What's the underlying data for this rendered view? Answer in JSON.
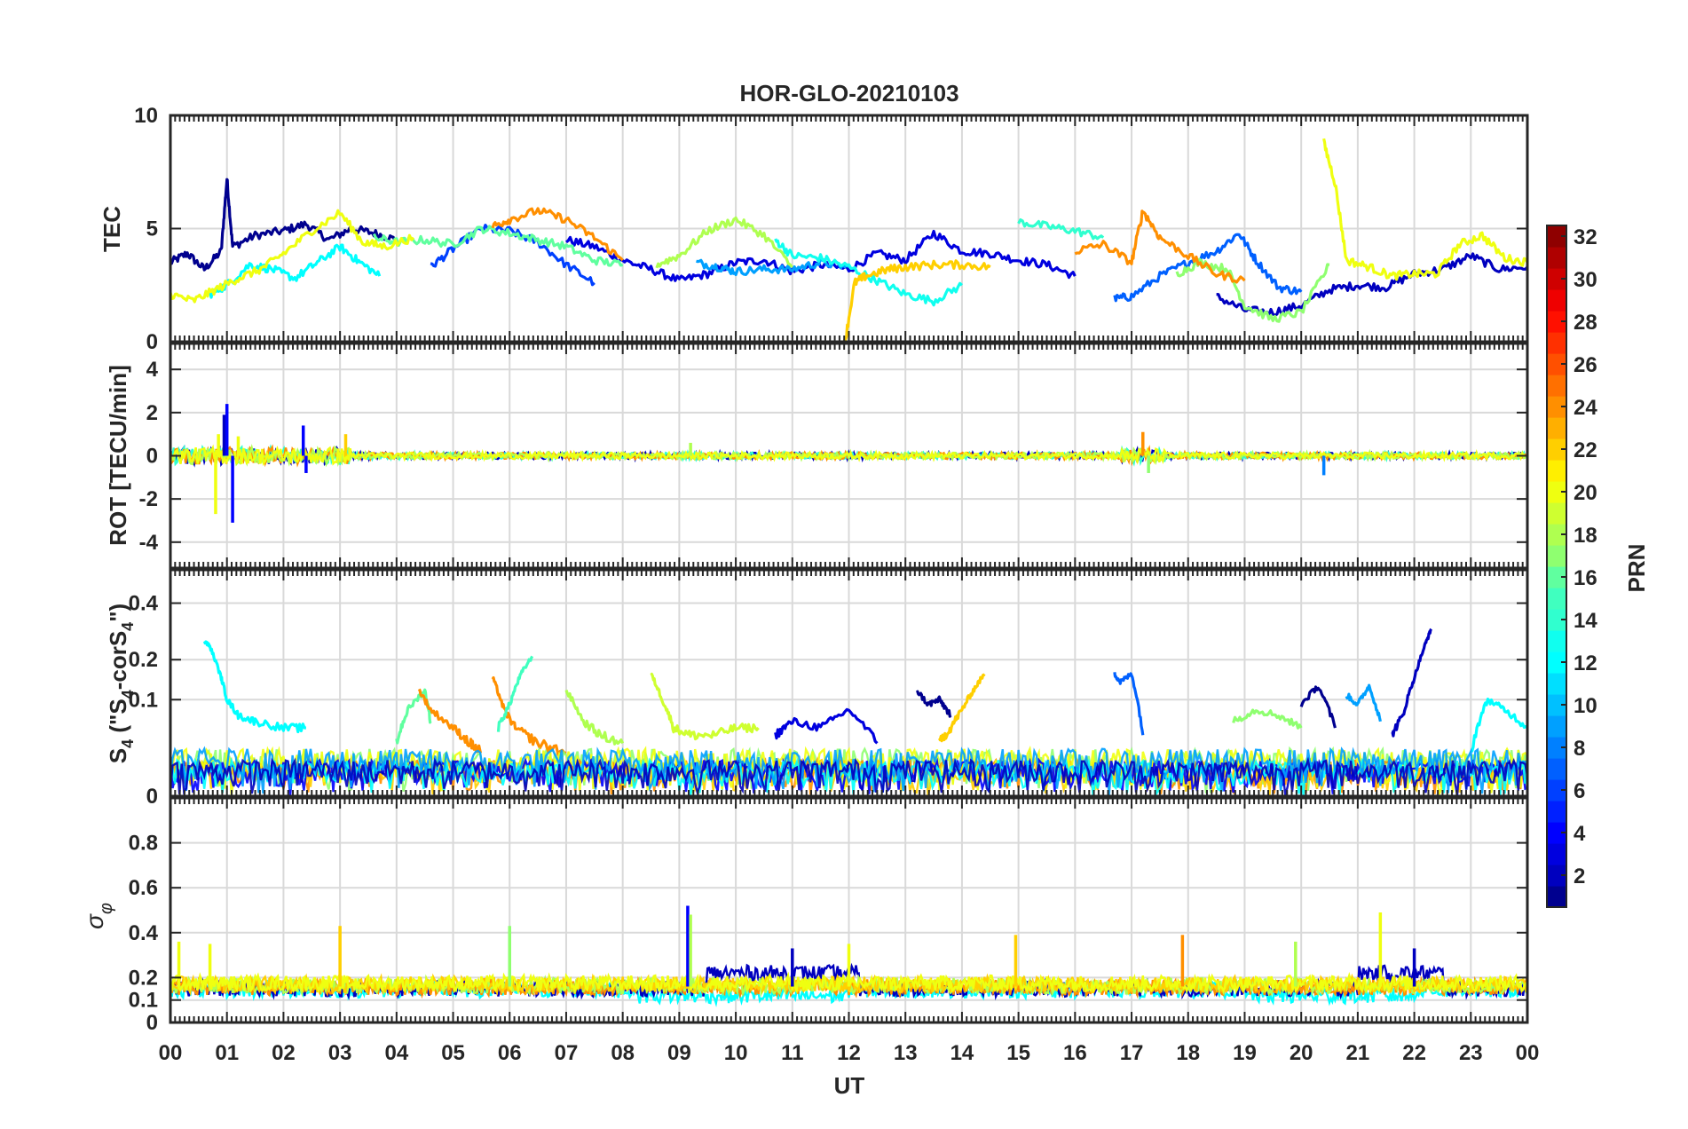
{
  "chart_data": {
    "type": "line",
    "title": "HOR-GLO-20210103",
    "xlabel": "UT",
    "x_ticks": [
      "00",
      "01",
      "02",
      "03",
      "04",
      "05",
      "06",
      "07",
      "08",
      "09",
      "10",
      "11",
      "12",
      "13",
      "14",
      "15",
      "16",
      "17",
      "18",
      "19",
      "20",
      "21",
      "22",
      "23",
      "00"
    ],
    "xlim": [
      0,
      24
    ],
    "grid": true,
    "colormap": "jet",
    "colorbar": {
      "label": "PRN",
      "range": [
        1,
        32
      ],
      "ticks": [
        "2",
        "4",
        "6",
        "8",
        "10",
        "12",
        "14",
        "16",
        "18",
        "20",
        "22",
        "24",
        "26",
        "28",
        "30",
        "32"
      ],
      "placement": "right"
    },
    "panels": [
      {
        "id": "tec",
        "ylabel": "TEC",
        "ylim": [
          0,
          10
        ],
        "y_ticks": [
          "0",
          "5",
          "10"
        ],
        "y_tick_values": [
          0,
          5,
          10
        ],
        "series": [
          {
            "prn": 2,
            "color": "#00008f",
            "x": [
              0,
              0.3,
              0.6,
              0.9,
              1.0,
              1.1,
              1.5,
              2.0,
              2.4,
              2.8,
              3.2,
              3.6,
              4.0
            ],
            "y": [
              3.5,
              3.9,
              3.2,
              4.0,
              7.2,
              4.2,
              4.7,
              4.9,
              5.2,
              4.5,
              5.0,
              4.8,
              4.5
            ]
          },
          {
            "prn": 4,
            "color": "#0000df",
            "x": [
              7.0,
              7.5,
              8.0,
              8.5,
              9.0,
              9.5,
              10.0,
              10.5,
              11.0,
              11.5,
              12.0,
              12.5,
              13.0,
              13.5,
              14.0,
              14.5,
              15.0,
              15.5,
              16.0
            ],
            "y": [
              4.5,
              4.2,
              3.6,
              3.2,
              2.7,
              3.0,
              3.5,
              3.6,
              3.1,
              3.4,
              3.2,
              3.9,
              3.6,
              4.8,
              4.0,
              3.9,
              3.6,
              3.4,
              2.9
            ]
          },
          {
            "prn": 3,
            "color": "#0000bf",
            "x": [
              18.5,
              19.0,
              19.5,
              20.0,
              20.5,
              21.0,
              21.5,
              22.0,
              22.5,
              23.0,
              23.5,
              24.0
            ],
            "y": [
              2.0,
              1.4,
              1.3,
              1.6,
              2.3,
              2.5,
              2.4,
              3.0,
              3.2,
              3.8,
              3.2,
              3.3
            ]
          },
          {
            "prn": 6,
            "color": "#0040ff",
            "x": [
              4.6,
              5.0,
              5.5,
              6.0,
              6.5,
              7.0,
              7.5
            ],
            "y": [
              3.3,
              4.1,
              5.0,
              4.9,
              4.4,
              3.4,
              2.6
            ]
          },
          {
            "prn": 7,
            "color": "#0060ff",
            "x": [
              16.7,
              17.0,
              17.5,
              18.0,
              18.5,
              18.9,
              19.2,
              19.6,
              20.0
            ],
            "y": [
              1.9,
              2.0,
              2.9,
              3.5,
              4.0,
              4.8,
              3.6,
              2.4,
              2.2
            ]
          },
          {
            "prn": 9,
            "color": "#00a0ff",
            "x": [
              9.3,
              9.7,
              10.0,
              10.5,
              11.0,
              11.5,
              12.0
            ],
            "y": [
              3.5,
              3.3,
              3.1,
              3.2,
              3.2,
              3.5,
              3.3
            ]
          },
          {
            "prn": 12,
            "color": "#00ffff",
            "x": [
              0.7,
              1.0,
              1.4,
              1.8,
              2.2,
              2.6,
              3.0,
              3.3,
              3.7
            ],
            "y": [
              2.1,
              2.5,
              3.4,
              3.2,
              2.8,
              3.5,
              4.2,
              3.6,
              2.9
            ]
          },
          {
            "prn": 13,
            "color": "#10ffef",
            "x": [
              10.7,
              11.0,
              11.5,
              12.0,
              12.5,
              13.0,
              13.5,
              14.0
            ],
            "y": [
              4.5,
              3.8,
              3.7,
              3.3,
              2.7,
              2.1,
              1.8,
              2.5
            ]
          },
          {
            "prn": 14,
            "color": "#30ffcf",
            "x": [
              15.0,
              15.5,
              16.0,
              16.5
            ],
            "y": [
              5.3,
              5.1,
              4.9,
              4.6
            ]
          },
          {
            "prn": 16,
            "color": "#60ff9f",
            "x": [
              3.6,
              4.0,
              4.5,
              5.0,
              5.5,
              6.0,
              6.5,
              7.0,
              7.5,
              8.0
            ],
            "y": [
              4.6,
              4.4,
              4.5,
              4.3,
              5.0,
              4.8,
              4.5,
              4.2,
              3.6,
              3.4
            ]
          },
          {
            "prn": 17,
            "color": "#8fff70",
            "x": [
              17.8,
              18.2,
              18.7,
              19.0,
              19.5,
              20.0,
              20.5
            ],
            "y": [
              3.0,
              3.5,
              3.2,
              1.6,
              1.0,
              1.3,
              3.4
            ]
          },
          {
            "prn": 18,
            "color": "#afff50",
            "x": [
              8.6,
              9.0,
              9.5,
              10.0,
              10.5,
              11.0
            ],
            "y": [
              3.4,
              3.8,
              4.9,
              5.4,
              4.7,
              3.3
            ]
          },
          {
            "prn": 20,
            "color": "#efff10",
            "x": [
              0,
              0.4,
              0.8,
              1.2,
              1.6,
              2.0,
              2.5,
              3.0,
              3.4,
              3.8,
              4.3
            ],
            "y": [
              2.1,
              1.8,
              2.3,
              2.8,
              3.2,
              3.9,
              4.9,
              5.7,
              4.4,
              4.2,
              4.6
            ]
          },
          {
            "prn": 20,
            "color": "#efff10",
            "x": [
              20.4,
              20.6,
              20.8,
              21.2,
              21.6,
              22.0,
              22.4,
              22.8,
              23.2,
              23.6,
              24.0
            ],
            "y": [
              8.8,
              7.0,
              3.6,
              3.3,
              2.9,
              3.0,
              3.0,
              4.3,
              4.7,
              3.7,
              3.5
            ]
          },
          {
            "prn": 22,
            "color": "#ffcf00",
            "x": [
              11.9,
              12.1,
              12.3,
              12.7,
              13.0,
              13.5,
              14.0,
              14.5
            ],
            "y": [
              -0.5,
              2.6,
              2.9,
              3.2,
              3.3,
              3.4,
              3.4,
              3.3
            ]
          },
          {
            "prn": 24,
            "color": "#ff8f00",
            "x": [
              5.7,
              6.0,
              6.5,
              7.0,
              7.5,
              8.0
            ],
            "y": [
              5.1,
              5.4,
              5.8,
              5.4,
              4.6,
              3.6
            ]
          },
          {
            "prn": 24,
            "color": "#ff8f00",
            "x": [
              16.0,
              16.5,
              17.0,
              17.2,
              17.5,
              18.0,
              18.5,
              19.0
            ],
            "y": [
              4.0,
              4.3,
              3.5,
              5.8,
              4.6,
              3.8,
              3.0,
              2.7
            ]
          }
        ]
      },
      {
        "id": "rot",
        "ylabel": "ROT [TECU/min]",
        "ylim": [
          -5.2,
          5.2
        ],
        "y_ticks": [
          "-4",
          "-2",
          "0",
          "2",
          "4"
        ],
        "y_tick_values": [
          -4,
          -2,
          0,
          2,
          4
        ],
        "baseline": 0,
        "noise_amplitude": 0.15,
        "spikes": [
          {
            "x": 0.8,
            "y": -2.7,
            "prn": 20
          },
          {
            "x": 0.85,
            "y": 1.0,
            "prn": 20
          },
          {
            "x": 0.95,
            "y": 1.9,
            "prn": 2
          },
          {
            "x": 1.0,
            "y": 2.4,
            "prn": 4
          },
          {
            "x": 1.1,
            "y": -3.1,
            "prn": 4
          },
          {
            "x": 1.2,
            "y": 0.9,
            "prn": 20
          },
          {
            "x": 2.35,
            "y": 1.4,
            "prn": 4
          },
          {
            "x": 2.4,
            "y": -0.8,
            "prn": 4
          },
          {
            "x": 3.1,
            "y": 1.0,
            "prn": 22
          },
          {
            "x": 17.2,
            "y": 1.1,
            "prn": 24
          },
          {
            "x": 17.3,
            "y": -0.8,
            "prn": 17
          },
          {
            "x": 20.4,
            "y": -0.9,
            "prn": 8
          },
          {
            "x": 9.2,
            "y": 0.6,
            "prn": 18
          }
        ]
      },
      {
        "id": "s4",
        "ylabel": "S4 (\"S4-corS4\")",
        "ylim": [
          0,
          0.55
        ],
        "y_ticks": [
          "0",
          "0.1",
          "0.2",
          "0.4"
        ],
        "y_tick_values": [
          0,
          0.1,
          0.2,
          0.4
        ],
        "y_scale": "sqrt",
        "series": [
          {
            "prn": 12,
            "color": "#00ffff",
            "x": [
              0.6,
              0.7,
              0.9,
              1.0,
              1.2,
              1.5,
              2.0,
              2.4
            ],
            "y": [
              0.26,
              0.24,
              0.15,
              0.1,
              0.07,
              0.06,
              0.05,
              0.05
            ]
          },
          {
            "prn": 16,
            "color": "#60ff9f",
            "x": [
              4.0,
              4.2,
              4.5,
              4.6
            ],
            "y": [
              0.03,
              0.08,
              0.12,
              0.06
            ]
          },
          {
            "prn": 24,
            "color": "#ff8f00",
            "x": [
              4.4,
              4.6,
              5.0,
              5.3,
              5.5
            ],
            "y": [
              0.12,
              0.08,
              0.05,
              0.03,
              0.02
            ]
          },
          {
            "prn": 24,
            "color": "#ff8f00",
            "x": [
              5.7,
              5.9,
              6.1,
              6.5,
              7.0
            ],
            "y": [
              0.15,
              0.08,
              0.05,
              0.03,
              0.02
            ]
          },
          {
            "prn": 15,
            "color": "#40ffbf",
            "x": [
              5.8,
              6.0,
              6.2,
              6.4
            ],
            "y": [
              0.05,
              0.09,
              0.16,
              0.21
            ]
          },
          {
            "prn": 18,
            "color": "#afff50",
            "x": [
              7.0,
              7.3,
              7.6,
              8.0
            ],
            "y": [
              0.12,
              0.06,
              0.04,
              0.03
            ]
          },
          {
            "prn": 19,
            "color": "#cfff30",
            "x": [
              8.5,
              8.7,
              8.9,
              9.2,
              9.6,
              10.0,
              10.4
            ],
            "y": [
              0.16,
              0.1,
              0.05,
              0.04,
              0.04,
              0.05,
              0.05
            ]
          },
          {
            "prn": 4,
            "color": "#0000df",
            "x": [
              10.7,
              11.0,
              11.5,
              12.0,
              12.5
            ],
            "y": [
              0.04,
              0.06,
              0.05,
              0.08,
              0.03
            ]
          },
          {
            "prn": 2,
            "color": "#00008f",
            "x": [
              13.2,
              13.4,
              13.6,
              13.8
            ],
            "y": [
              0.12,
              0.09,
              0.1,
              0.07
            ]
          },
          {
            "prn": 22,
            "color": "#ffcf00",
            "x": [
              13.6,
              13.8,
              14.0,
              14.2,
              14.4
            ],
            "y": [
              0.03,
              0.05,
              0.08,
              0.12,
              0.16
            ]
          },
          {
            "prn": 7,
            "color": "#0060ff",
            "x": [
              16.7,
              16.8,
              17.0,
              17.2
            ],
            "y": [
              0.16,
              0.14,
              0.16,
              0.04
            ]
          },
          {
            "prn": 17,
            "color": "#8fff70",
            "x": [
              18.8,
              19.2,
              19.6,
              20.0
            ],
            "y": [
              0.06,
              0.08,
              0.07,
              0.05
            ]
          },
          {
            "prn": 9,
            "color": "#00a0ff",
            "x": [
              20.8,
              21.0,
              21.2,
              21.4
            ],
            "y": [
              0.11,
              0.09,
              0.13,
              0.06
            ]
          },
          {
            "prn": 3,
            "color": "#0000bf",
            "x": [
              21.6,
              21.8,
              22.0,
              22.2,
              22.3
            ],
            "y": [
              0.04,
              0.07,
              0.15,
              0.25,
              0.3
            ]
          },
          {
            "prn": 2,
            "color": "#00008f",
            "x": [
              20.0,
              20.3,
              20.6
            ],
            "y": [
              0.09,
              0.13,
              0.05
            ]
          },
          {
            "prn": 12,
            "color": "#00ffff",
            "x": [
              23.0,
              23.3,
              23.6,
              24.0
            ],
            "y": [
              0.02,
              0.1,
              0.08,
              0.05
            ]
          }
        ],
        "baseline_band": [
          0.0,
          0.04
        ]
      },
      {
        "id": "sigma",
        "ylabel": "σφ",
        "ylim": [
          0,
          1.0
        ],
        "y_ticks": [
          "0",
          "0.1",
          "0.2",
          "0.4",
          "0.6",
          "0.8"
        ],
        "y_tick_values": [
          0,
          0.1,
          0.2,
          0.4,
          0.6,
          0.8
        ],
        "baseline": 0.16,
        "noise_amplitude": 0.035,
        "spikes": [
          {
            "x": 0.15,
            "y": 0.36,
            "prn": 20
          },
          {
            "x": 0.7,
            "y": 0.35,
            "prn": 20
          },
          {
            "x": 3.0,
            "y": 0.43,
            "prn": 22
          },
          {
            "x": 6.0,
            "y": 0.43,
            "prn": 17
          },
          {
            "x": 9.15,
            "y": 0.52,
            "prn": 4
          },
          {
            "x": 9.2,
            "y": 0.48,
            "prn": 18
          },
          {
            "x": 12.0,
            "y": 0.35,
            "prn": 20
          },
          {
            "x": 14.95,
            "y": 0.39,
            "prn": 22
          },
          {
            "x": 17.9,
            "y": 0.39,
            "prn": 24
          },
          {
            "x": 19.9,
            "y": 0.36,
            "prn": 18
          },
          {
            "x": 21.4,
            "y": 0.49,
            "prn": 20
          },
          {
            "x": 11.0,
            "y": 0.33,
            "prn": 2
          },
          {
            "x": 22.0,
            "y": 0.33,
            "prn": 2
          }
        ],
        "elevated_band": {
          "x": [
            9.5,
            12.2
          ],
          "y": 0.27,
          "prn": 2
        },
        "elevated_band_2": {
          "x": [
            21.0,
            22.5
          ],
          "y": 0.27,
          "prn": 2
        }
      }
    ]
  }
}
